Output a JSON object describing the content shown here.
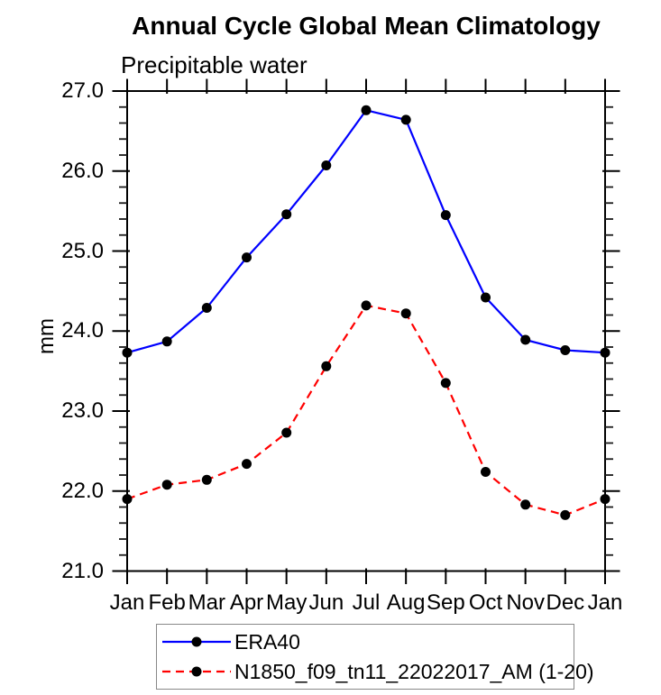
{
  "title": "Annual Cycle Global Mean Climatology",
  "subtitle": "Precipitable water",
  "ylabel": "mm",
  "colors": {
    "series1": "#0000ff",
    "series2": "#ff0000",
    "marker": "#000000",
    "axis": "#000000",
    "legend_border": "#888888"
  },
  "chart_data": {
    "type": "line",
    "title": "Annual Cycle Global Mean Climatology",
    "subtitle": "Precipitable water",
    "xlabel": "",
    "ylabel": "mm",
    "categories": [
      "Jan",
      "Feb",
      "Mar",
      "Apr",
      "May",
      "Jun",
      "Jul",
      "Aug",
      "Sep",
      "Oct",
      "Nov",
      "Dec",
      "Jan"
    ],
    "series": [
      {
        "name": "ERA40",
        "color": "#0000ff",
        "line_style": "solid",
        "marker": "circle",
        "marker_color": "#000000",
        "values": [
          23.73,
          23.87,
          24.29,
          24.92,
          25.46,
          26.07,
          26.76,
          26.64,
          25.45,
          24.42,
          23.89,
          23.76,
          23.73
        ]
      },
      {
        "name": "N1850_f09_tn11_22022017_AM (1-20)",
        "color": "#ff0000",
        "line_style": "dashed",
        "marker": "circle",
        "marker_color": "#000000",
        "values": [
          21.9,
          22.08,
          22.14,
          22.34,
          22.73,
          23.56,
          24.32,
          24.22,
          23.35,
          22.24,
          21.83,
          21.7,
          21.9
        ]
      }
    ],
    "ylim": [
      21.0,
      27.0
    ],
    "ytick_interval": 1.0,
    "ytick_labels": [
      "21.0",
      "22.0",
      "23.0",
      "24.0",
      "25.0",
      "26.0",
      "27.0"
    ],
    "minor_ytick_interval": 0.2,
    "grid": false,
    "legend_position": "bottom"
  }
}
